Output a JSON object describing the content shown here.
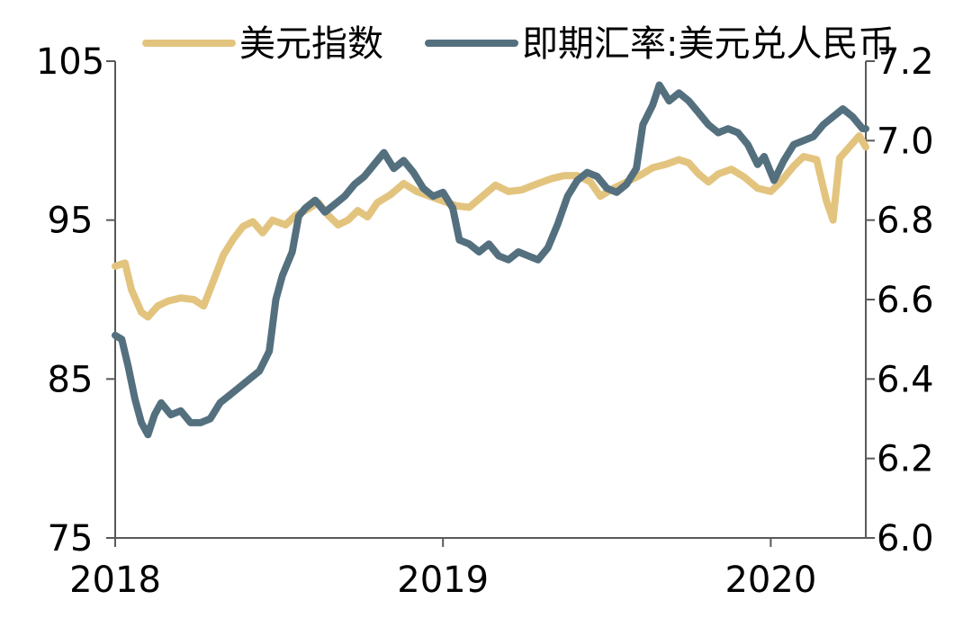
{
  "chart_data": {
    "type": "line",
    "title": "",
    "xlabel": "",
    "ylabel_left": "",
    "ylabel_right": "",
    "x_ticks": [
      "2018",
      "2019",
      "2020"
    ],
    "xlim": [
      2018.0,
      2020.29
    ],
    "y_left": {
      "lim": [
        75,
        105
      ],
      "ticks": [
        "75",
        "85",
        "95",
        "105"
      ]
    },
    "y_right": {
      "lim": [
        6.0,
        7.2
      ],
      "ticks": [
        "6.0",
        "6.2",
        "6.4",
        "6.6",
        "6.8",
        "7.0",
        "7.2"
      ]
    },
    "grid": false,
    "legend_position": "top",
    "series": [
      {
        "name": "美元指数",
        "axis": "left",
        "color": "#E3C47E",
        "points": [
          [
            2018.0,
            92.1
          ],
          [
            2018.03,
            92.3
          ],
          [
            2018.05,
            90.6
          ],
          [
            2018.08,
            89.2
          ],
          [
            2018.1,
            88.9
          ],
          [
            2018.13,
            89.6
          ],
          [
            2018.16,
            89.9
          ],
          [
            2018.2,
            90.1
          ],
          [
            2018.24,
            90.0
          ],
          [
            2018.27,
            89.6
          ],
          [
            2018.3,
            91.2
          ],
          [
            2018.33,
            92.8
          ],
          [
            2018.36,
            93.8
          ],
          [
            2018.39,
            94.6
          ],
          [
            2018.42,
            94.9
          ],
          [
            2018.45,
            94.2
          ],
          [
            2018.48,
            95.0
          ],
          [
            2018.52,
            94.7
          ],
          [
            2018.55,
            95.3
          ],
          [
            2018.58,
            95.6
          ],
          [
            2018.62,
            96.1
          ],
          [
            2018.65,
            95.3
          ],
          [
            2018.68,
            94.7
          ],
          [
            2018.71,
            95.0
          ],
          [
            2018.74,
            95.6
          ],
          [
            2018.77,
            95.2
          ],
          [
            2018.8,
            96.1
          ],
          [
            2018.84,
            96.6
          ],
          [
            2018.88,
            97.3
          ],
          [
            2018.92,
            96.8
          ],
          [
            2018.96,
            96.5
          ],
          [
            2019.0,
            96.2
          ],
          [
            2019.04,
            95.9
          ],
          [
            2019.08,
            95.8
          ],
          [
            2019.12,
            96.5
          ],
          [
            2019.16,
            97.2
          ],
          [
            2019.2,
            96.8
          ],
          [
            2019.24,
            96.9
          ],
          [
            2019.29,
            97.3
          ],
          [
            2019.33,
            97.6
          ],
          [
            2019.37,
            97.8
          ],
          [
            2019.41,
            97.8
          ],
          [
            2019.45,
            97.4
          ],
          [
            2019.48,
            96.5
          ],
          [
            2019.52,
            97.0
          ],
          [
            2019.56,
            97.4
          ],
          [
            2019.6,
            97.8
          ],
          [
            2019.64,
            98.3
          ],
          [
            2019.68,
            98.5
          ],
          [
            2019.72,
            98.8
          ],
          [
            2019.75,
            98.6
          ],
          [
            2019.78,
            97.9
          ],
          [
            2019.81,
            97.4
          ],
          [
            2019.84,
            97.9
          ],
          [
            2019.88,
            98.2
          ],
          [
            2019.92,
            97.7
          ],
          [
            2019.96,
            97.0
          ],
          [
            2020.0,
            96.8
          ],
          [
            2020.03,
            97.4
          ],
          [
            2020.07,
            98.4
          ],
          [
            2020.1,
            99.0
          ],
          [
            2020.14,
            98.8
          ],
          [
            2020.17,
            96.2
          ],
          [
            2020.19,
            95.0
          ],
          [
            2020.21,
            98.9
          ],
          [
            2020.24,
            99.6
          ],
          [
            2020.27,
            100.3
          ],
          [
            2020.29,
            99.6
          ]
        ]
      },
      {
        "name": "即期汇率:美元兑人民币",
        "axis": "right",
        "color": "#54707F",
        "points": [
          [
            2018.0,
            6.51
          ],
          [
            2018.02,
            6.5
          ],
          [
            2018.04,
            6.43
          ],
          [
            2018.06,
            6.35
          ],
          [
            2018.08,
            6.29
          ],
          [
            2018.1,
            6.26
          ],
          [
            2018.12,
            6.31
          ],
          [
            2018.14,
            6.34
          ],
          [
            2018.17,
            6.31
          ],
          [
            2018.2,
            6.32
          ],
          [
            2018.23,
            6.29
          ],
          [
            2018.26,
            6.29
          ],
          [
            2018.29,
            6.3
          ],
          [
            2018.32,
            6.34
          ],
          [
            2018.35,
            6.36
          ],
          [
            2018.38,
            6.38
          ],
          [
            2018.41,
            6.4
          ],
          [
            2018.44,
            6.42
          ],
          [
            2018.47,
            6.47
          ],
          [
            2018.49,
            6.6
          ],
          [
            2018.51,
            6.66
          ],
          [
            2018.54,
            6.72
          ],
          [
            2018.56,
            6.81
          ],
          [
            2018.58,
            6.83
          ],
          [
            2018.61,
            6.85
          ],
          [
            2018.64,
            6.82
          ],
          [
            2018.67,
            6.84
          ],
          [
            2018.7,
            6.86
          ],
          [
            2018.73,
            6.89
          ],
          [
            2018.76,
            6.91
          ],
          [
            2018.79,
            6.94
          ],
          [
            2018.82,
            6.97
          ],
          [
            2018.85,
            6.93
          ],
          [
            2018.88,
            6.95
          ],
          [
            2018.91,
            6.92
          ],
          [
            2018.94,
            6.88
          ],
          [
            2018.97,
            6.86
          ],
          [
            2019.0,
            6.87
          ],
          [
            2019.03,
            6.83
          ],
          [
            2019.05,
            6.75
          ],
          [
            2019.08,
            6.74
          ],
          [
            2019.11,
            6.72
          ],
          [
            2019.14,
            6.74
          ],
          [
            2019.17,
            6.71
          ],
          [
            2019.2,
            6.7
          ],
          [
            2019.23,
            6.72
          ],
          [
            2019.26,
            6.71
          ],
          [
            2019.29,
            6.7
          ],
          [
            2019.32,
            6.73
          ],
          [
            2019.35,
            6.79
          ],
          [
            2019.38,
            6.86
          ],
          [
            2019.41,
            6.9
          ],
          [
            2019.44,
            6.92
          ],
          [
            2019.47,
            6.91
          ],
          [
            2019.5,
            6.88
          ],
          [
            2019.53,
            6.87
          ],
          [
            2019.56,
            6.89
          ],
          [
            2019.59,
            6.93
          ],
          [
            2019.61,
            7.04
          ],
          [
            2019.64,
            7.09
          ],
          [
            2019.66,
            7.14
          ],
          [
            2019.69,
            7.1
          ],
          [
            2019.72,
            7.12
          ],
          [
            2019.75,
            7.1
          ],
          [
            2019.78,
            7.07
          ],
          [
            2019.81,
            7.04
          ],
          [
            2019.84,
            7.02
          ],
          [
            2019.87,
            7.03
          ],
          [
            2019.9,
            7.02
          ],
          [
            2019.93,
            6.99
          ],
          [
            2019.96,
            6.94
          ],
          [
            2019.98,
            6.96
          ],
          [
            2020.01,
            6.9
          ],
          [
            2020.04,
            6.95
          ],
          [
            2020.07,
            6.99
          ],
          [
            2020.1,
            7.0
          ],
          [
            2020.13,
            7.01
          ],
          [
            2020.16,
            7.04
          ],
          [
            2020.19,
            7.06
          ],
          [
            2020.22,
            7.08
          ],
          [
            2020.25,
            7.06
          ],
          [
            2020.28,
            7.03
          ],
          [
            2020.29,
            7.03
          ]
        ]
      }
    ]
  }
}
